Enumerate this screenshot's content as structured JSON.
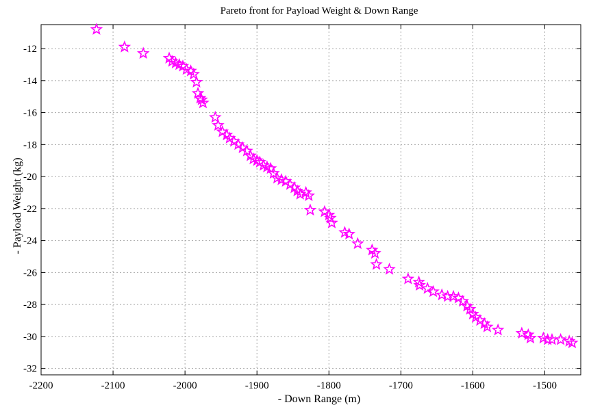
{
  "chart_data": {
    "type": "scatter",
    "title": "Pareto front for Payload Weight & Down Range",
    "xlabel": "- Down Range (m)",
    "ylabel": "- Payload Weight (kg)",
    "xlim": [
      -2200,
      -1450
    ],
    "ylim": [
      -32.4,
      -10.5
    ],
    "xticks": [
      -2200,
      -2100,
      -2000,
      -1900,
      -1800,
      -1700,
      -1600,
      -1500
    ],
    "yticks": [
      -32,
      -30,
      -28,
      -26,
      -24,
      -22,
      -20,
      -18,
      -16,
      -14,
      -12
    ],
    "xtick_labels": [
      "-2200",
      "-2100",
      "-2000",
      "-1900",
      "-1800",
      "-1700",
      "-1600",
      "-1500"
    ],
    "ytick_labels": [
      "-32",
      "-30",
      "-28",
      "-26",
      "-24",
      "-22",
      "-20",
      "-18",
      "-16",
      "-14",
      "-12"
    ],
    "grid": true,
    "marker": "pentagram",
    "color": "#ff00ff",
    "x": [
      -2123,
      -2084,
      -2058,
      -2022,
      -2018,
      -2013,
      -2008,
      -2003,
      -1998,
      -1992,
      -1988,
      -1984,
      -1982,
      -1979,
      -1977,
      -1975,
      -1958,
      -1954,
      -1948,
      -1942,
      -1938,
      -1932,
      -1926,
      -1920,
      -1914,
      -1909,
      -1905,
      -1900,
      -1896,
      -1891,
      -1886,
      -1881,
      -1877,
      -1872,
      -1866,
      -1860,
      -1854,
      -1848,
      -1844,
      -1840,
      -1832,
      -1828,
      -1826,
      -1806,
      -1800,
      -1798,
      -1796,
      -1778,
      -1772,
      -1760,
      -1740,
      -1736,
      -1734,
      -1716,
      -1690,
      -1675,
      -1674,
      -1663,
      -1655,
      -1643,
      -1635,
      -1627,
      -1620,
      -1614,
      -1608,
      -1604,
      -1600,
      -1596,
      -1590,
      -1584,
      -1580,
      -1565,
      -1532,
      -1523,
      -1520,
      -1502,
      -1496,
      -1490,
      -1478,
      -1466,
      -1462
    ],
    "y": [
      -10.8,
      -11.9,
      -12.3,
      -12.6,
      -12.8,
      -12.9,
      -13.0,
      -13.1,
      -13.3,
      -13.4,
      -13.6,
      -14.1,
      -14.8,
      -15.1,
      -15.2,
      -15.4,
      -16.3,
      -16.8,
      -17.2,
      -17.4,
      -17.6,
      -17.8,
      -18.0,
      -18.2,
      -18.4,
      -18.7,
      -18.9,
      -19.0,
      -19.1,
      -19.3,
      -19.4,
      -19.5,
      -19.8,
      -20.1,
      -20.2,
      -20.3,
      -20.5,
      -20.7,
      -20.9,
      -21.1,
      -21.0,
      -21.2,
      -22.1,
      -22.2,
      -22.4,
      -22.6,
      -22.9,
      -23.5,
      -23.6,
      -24.2,
      -24.6,
      -24.8,
      -25.5,
      -25.8,
      -26.4,
      -26.6,
      -26.8,
      -27.0,
      -27.2,
      -27.4,
      -27.5,
      -27.5,
      -27.6,
      -27.8,
      -28.1,
      -28.3,
      -28.6,
      -28.8,
      -29.0,
      -29.2,
      -29.4,
      -29.6,
      -29.8,
      -29.9,
      -30.1,
      -30.1,
      -30.2,
      -30.2,
      -30.2,
      -30.3,
      -30.4
    ]
  }
}
